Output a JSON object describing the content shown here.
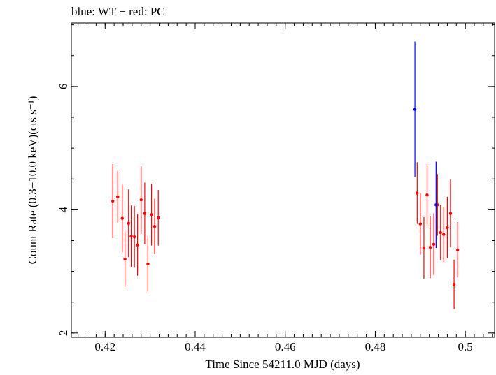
{
  "chart_data": {
    "type": "scatter",
    "title": "blue: WT − red: PC",
    "xlabel": "Time Since 54211.0 MJD (days)",
    "ylabel": "Count Rate (0.3−10.0 keV)(cts s⁻¹)",
    "xlim": [
      0.4125,
      0.5065
    ],
    "ylim": [
      1.93,
      7.03
    ],
    "x_ticks": [
      0.42,
      0.44,
      0.46,
      0.48,
      0.5
    ],
    "x_tick_labels": [
      "0.42",
      "0.44",
      "0.46",
      "0.48",
      "0.5"
    ],
    "y_ticks": [
      2,
      4,
      6
    ],
    "y_tick_labels": [
      "2",
      "4",
      "6"
    ],
    "grid": false,
    "series": [
      {
        "name": "WT",
        "color": "#0000ff",
        "points": [
          {
            "x": 0.4888,
            "y": 5.63,
            "err": 1.1
          },
          {
            "x": 0.4935,
            "y": 4.08,
            "err": 0.7
          }
        ]
      },
      {
        "name": "PC",
        "color": "#ff0000",
        "points": [
          {
            "x": 0.4217,
            "y": 4.14,
            "err": 0.6
          },
          {
            "x": 0.4228,
            "y": 4.21,
            "err": 0.42
          },
          {
            "x": 0.4238,
            "y": 3.86,
            "err": 0.55
          },
          {
            "x": 0.4244,
            "y": 3.2,
            "err": 0.45
          },
          {
            "x": 0.4252,
            "y": 3.78,
            "err": 0.55
          },
          {
            "x": 0.4258,
            "y": 3.57,
            "err": 0.5
          },
          {
            "x": 0.4265,
            "y": 3.56,
            "err": 0.5
          },
          {
            "x": 0.4272,
            "y": 3.43,
            "err": 0.5
          },
          {
            "x": 0.428,
            "y": 4.16,
            "err": 0.55
          },
          {
            "x": 0.4288,
            "y": 3.94,
            "err": 0.5
          },
          {
            "x": 0.4295,
            "y": 3.12,
            "err": 0.45
          },
          {
            "x": 0.4303,
            "y": 3.92,
            "err": 0.5
          },
          {
            "x": 0.431,
            "y": 3.73,
            "err": 0.45
          },
          {
            "x": 0.4318,
            "y": 3.87,
            "err": 0.45
          },
          {
            "x": 0.4893,
            "y": 4.27,
            "err": 0.5
          },
          {
            "x": 0.49,
            "y": 3.77,
            "err": 0.5
          },
          {
            "x": 0.4908,
            "y": 3.38,
            "err": 0.5
          },
          {
            "x": 0.4915,
            "y": 4.24,
            "err": 0.5
          },
          {
            "x": 0.4922,
            "y": 3.39,
            "err": 0.5
          },
          {
            "x": 0.493,
            "y": 3.44,
            "err": 0.5
          },
          {
            "x": 0.4938,
            "y": 4.08,
            "err": 0.5
          },
          {
            "x": 0.4945,
            "y": 3.63,
            "err": 0.45
          },
          {
            "x": 0.4952,
            "y": 3.6,
            "err": 0.45
          },
          {
            "x": 0.496,
            "y": 3.71,
            "err": 0.5
          },
          {
            "x": 0.4967,
            "y": 3.94,
            "err": 0.55
          },
          {
            "x": 0.4975,
            "y": 2.79,
            "err": 0.4
          },
          {
            "x": 0.4983,
            "y": 3.35,
            "err": 0.45
          }
        ]
      }
    ]
  }
}
